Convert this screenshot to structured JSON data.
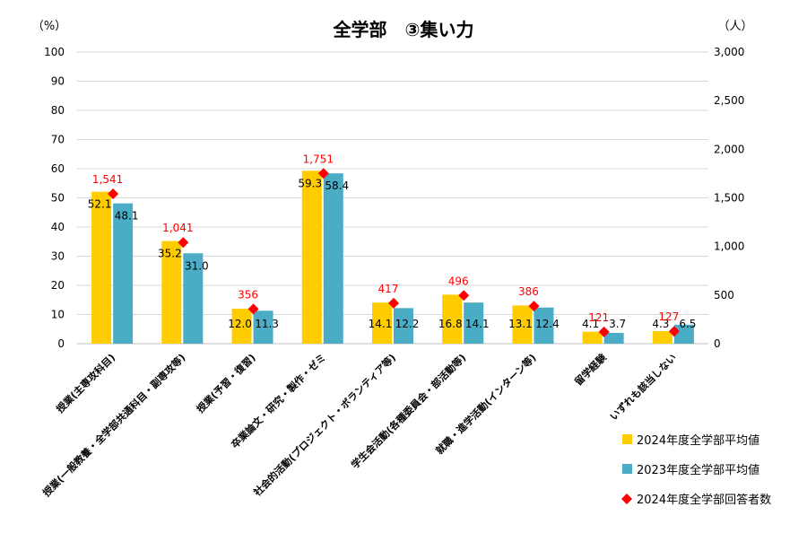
{
  "chart_data": {
    "type": "bar",
    "title": "全学部　③集い力",
    "left_axis_unit": "（%）",
    "right_axis_unit": "（人）",
    "ylim_left": [
      0,
      100
    ],
    "yticks_left": [
      0,
      10,
      20,
      30,
      40,
      50,
      60,
      70,
      80,
      90,
      100
    ],
    "ylim_right": [
      0,
      3000
    ],
    "yticks_right": [
      "0",
      "500",
      "1,000",
      "1,500",
      "2,000",
      "2,500",
      "3,000"
    ],
    "yticks_right_values": [
      0,
      500,
      1000,
      1500,
      2000,
      2500,
      3000
    ],
    "grid": true,
    "legend_position": "bottom-right",
    "categories": [
      "授業(主専攻科目)",
      "授業(一般教養・全学部共通科目・副専攻等)",
      "授業(予習・復習)",
      "卒業論文・研究・製作・ゼミ",
      "社会的活動(プロジェクト・ボランティア等)",
      "学生会活動(各種委員会・部活動等)",
      "就職・進学活動(インターン等)",
      "留学経験",
      "いずれも該当しない"
    ],
    "series": [
      {
        "name": "2024年度全学部平均値",
        "color": "#FFCC00",
        "values": [
          52.1,
          35.2,
          12.0,
          59.3,
          14.1,
          16.8,
          13.1,
          4.1,
          4.3
        ],
        "labels": [
          "52.1",
          "35.2",
          "12.0",
          "59.3",
          "14.1",
          "16.8",
          "13.1",
          "4.1",
          "4.3"
        ]
      },
      {
        "name": "2023年度全学部平均値",
        "color": "#4BACC6",
        "values": [
          48.1,
          31.0,
          11.3,
          58.4,
          12.2,
          14.1,
          12.4,
          3.7,
          6.5
        ],
        "labels": [
          "48.1",
          "31.0",
          "11.3",
          "58.4",
          "12.2",
          "14.1",
          "12.4",
          "3.7",
          "6.5"
        ]
      },
      {
        "name": "2024年度全学部回答者数",
        "color": "#FF0000",
        "axis": "right",
        "values": [
          1541,
          1041,
          356,
          1751,
          417,
          496,
          386,
          121,
          127
        ],
        "labels": [
          "1,541",
          "1,041",
          "356",
          "1,751",
          "417",
          "496",
          "386",
          "121",
          "127"
        ]
      }
    ]
  }
}
